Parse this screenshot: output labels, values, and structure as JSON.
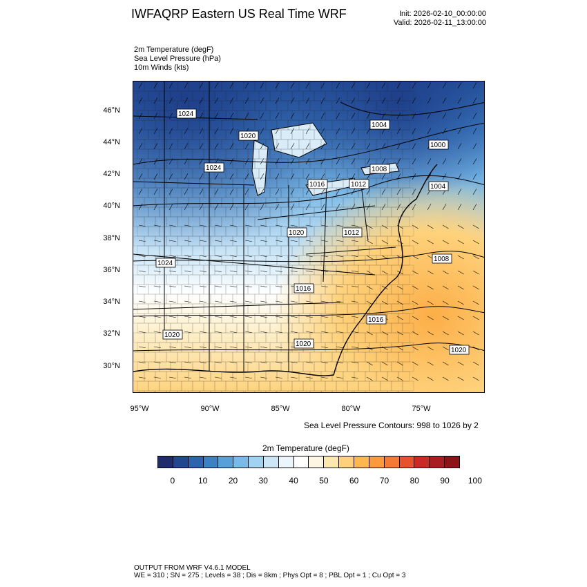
{
  "header": {
    "title": "IWFAQRP Eastern US Real Time WRF",
    "init": "Init: 2026-02-10_00:00:00",
    "valid": "Valid: 2026-02-11_13:00:00"
  },
  "fields": [
    "2m Temperature   (degF)",
    "Sea Level Pressure   (hPa)",
    "10m Winds   (kts)"
  ],
  "map": {
    "lat_labels": [
      "46°N",
      "44°N",
      "42°N",
      "40°N",
      "38°N",
      "36°N",
      "34°N",
      "32°N",
      "30°N"
    ],
    "lon_labels": [
      "95°W",
      "90°W",
      "85°W",
      "80°W",
      "75°W"
    ],
    "pressure_labels": [
      "1024",
      "1020",
      "1004",
      "1000",
      "1024",
      "1008",
      "1016",
      "1012",
      "1004",
      "1020",
      "1012",
      "1024",
      "1016",
      "1008",
      "1016",
      "1020",
      "1020",
      "1020"
    ],
    "contour_note": "Sea Level Pressure Contours: 998 to 1026 by 2"
  },
  "colorbar": {
    "title": "2m Temperature  (degF)",
    "colors": [
      "#1f2d6b",
      "#23478f",
      "#2e63ad",
      "#3f80c4",
      "#58a0d9",
      "#7bb9e6",
      "#a3d1f0",
      "#cce6f7",
      "#ebf5fc",
      "#ffffff",
      "#fdf6e3",
      "#fde7b0",
      "#fed27c",
      "#feb84f",
      "#fc9a3c",
      "#f57a33",
      "#e8512e",
      "#c92a27",
      "#a81c22",
      "#8a1418"
    ],
    "labels": [
      "0",
      "10",
      "20",
      "30",
      "40",
      "50",
      "60",
      "70",
      "80",
      "90",
      "100"
    ]
  },
  "footer": {
    "line1": "OUTPUT FROM WRF V4.6.1 MODEL",
    "line2": "WE = 310 ; SN = 275 ; Levels = 38 ; Dis = 8km ; Phys Opt = 8 ; PBL Opt = 1 ; Cu Opt = 3"
  }
}
